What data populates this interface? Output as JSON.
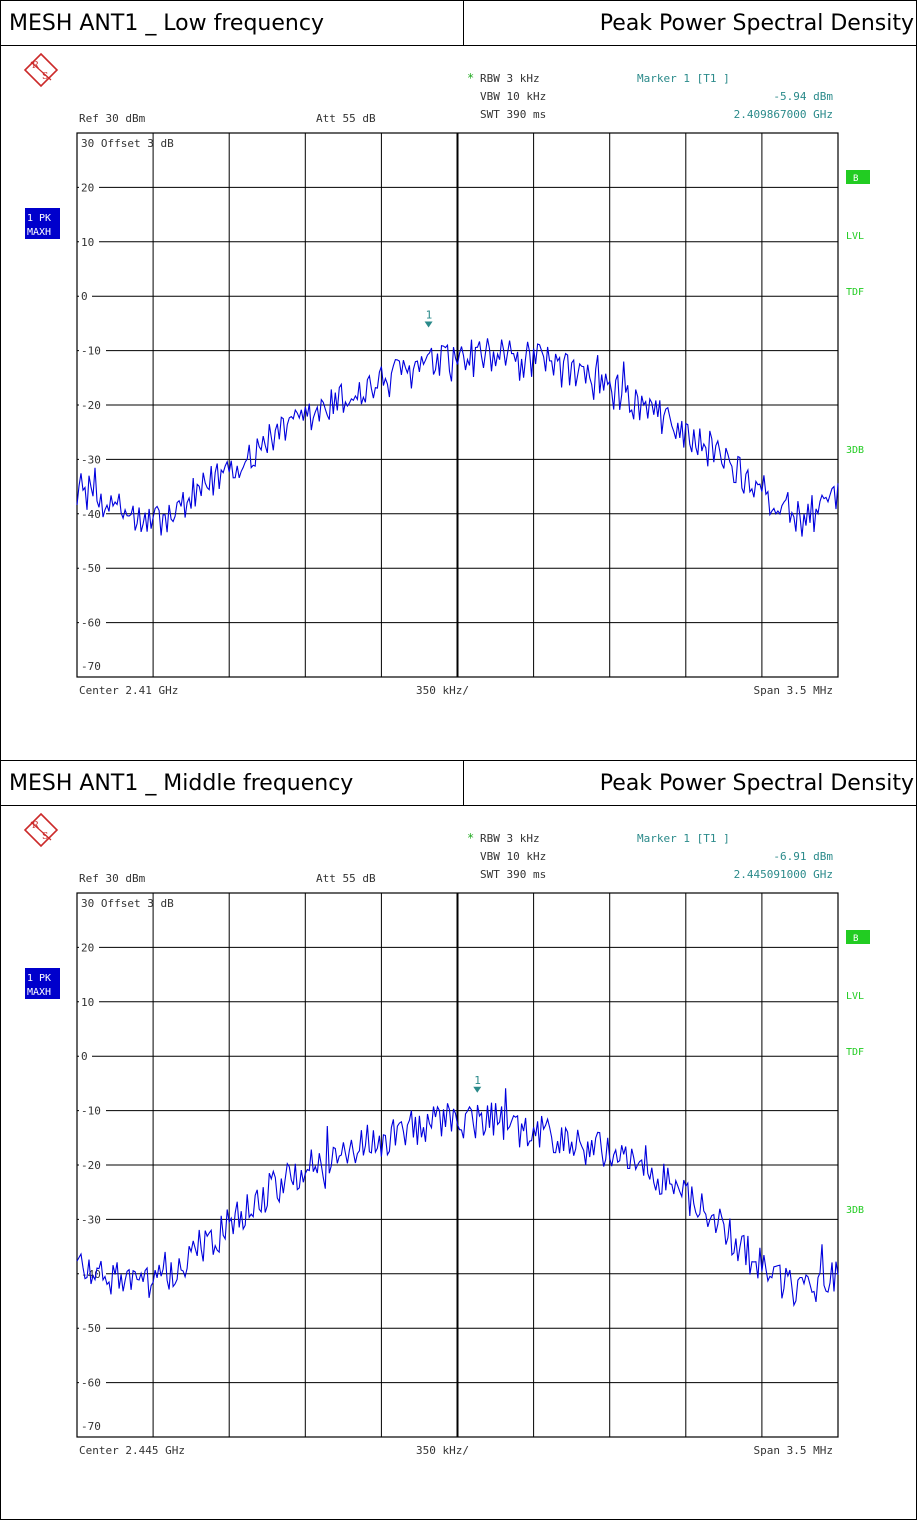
{
  "plots": [
    {
      "title_left": "MESH ANT1 _ Low frequency",
      "title_right": "Peak Power Spectral Density",
      "rbw": "RBW 3 kHz",
      "vbw": "VBW 10 kHz",
      "swt": "SWT 390 ms",
      "ref": "Ref  30 dBm",
      "att": "Att  55 dB",
      "marker_label": "Marker 1 [T1 ]",
      "marker_level": "-5.94 dBm",
      "marker_freq": "2.409867000 GHz",
      "offset": "30 Offset  3 dB",
      "trace_mode_1": "1 PK",
      "trace_mode_2": "MAXH",
      "side_b": "B",
      "side_lvl": "LVL",
      "side_tdf": "TDF",
      "side_3db": "3DB",
      "center": "Center  2.41 GHz",
      "per_div": "350 kHz/",
      "span": "Span  3.5 MHz",
      "marker_num": "1"
    },
    {
      "title_left": "MESH ANT1 _ Middle frequency",
      "title_right": "Peak Power Spectral Density",
      "rbw": "RBW 3 kHz",
      "vbw": "VBW 10 kHz",
      "swt": "SWT 390 ms",
      "ref": "Ref  30 dBm",
      "att": "Att  55 dB",
      "marker_label": "Marker 1 [T1 ]",
      "marker_level": "-6.91 dBm",
      "marker_freq": "2.445091000 GHz",
      "offset": "30 Offset  3 dB",
      "trace_mode_1": "1 PK",
      "trace_mode_2": "MAXH",
      "side_b": "B",
      "side_lvl": "LVL",
      "side_tdf": "TDF",
      "side_3db": "3DB",
      "center": "Center  2.445 GHz",
      "per_div": "350 kHz/",
      "span": "Span  3.5 MHz",
      "marker_num": "1"
    }
  ],
  "colors": {
    "trace": "#0000dd",
    "marker": "#2a8a8a",
    "side_label": "#22cc22",
    "trace_badge": "#0000cc",
    "grid": "#000000",
    "logo": "#cc2a2a"
  },
  "chart_data": [
    {
      "type": "line",
      "title": "MESH ANT1 _ Low frequency",
      "xlabel": "",
      "ylabel": "",
      "x_center_ghz": 2.41,
      "x_span_mhz": 3.5,
      "x_per_div_khz": 350,
      "ylim": [
        -70,
        30
      ],
      "yticks": [
        "30",
        "20",
        "10",
        "0",
        "-10",
        "-20",
        "-30",
        "-40",
        "-50",
        "-60",
        "-70"
      ],
      "grid": true,
      "marker": {
        "x_mhz_offset": -0.133,
        "y": -5.94
      },
      "x_mhz_offset": [
        -1.75,
        -1.575,
        -1.4,
        -1.225,
        -1.05,
        -0.875,
        -0.7,
        -0.525,
        -0.35,
        -0.175,
        0.0,
        0.175,
        0.35,
        0.525,
        0.7,
        0.875,
        1.05,
        1.225,
        1.4,
        1.575,
        1.75
      ],
      "values": [
        -35,
        -39,
        -42,
        -38,
        -31,
        -27,
        -23,
        -19,
        -16,
        -13,
        -12,
        -11,
        -12,
        -14,
        -17,
        -21,
        -25,
        -30,
        -36,
        -41,
        -38
      ]
    },
    {
      "type": "line",
      "title": "MESH ANT1 _ Middle frequency",
      "xlabel": "",
      "ylabel": "",
      "x_center_ghz": 2.445,
      "x_span_mhz": 3.5,
      "x_per_div_khz": 350,
      "ylim": [
        -70,
        30
      ],
      "yticks": [
        "30",
        "20",
        "10",
        "0",
        "-10",
        "-20",
        "-30",
        "-40",
        "-50",
        "-60",
        "-70"
      ],
      "grid": true,
      "marker": {
        "x_mhz_offset": 0.091,
        "y": -6.91
      },
      "x_mhz_offset": [
        -1.75,
        -1.575,
        -1.4,
        -1.225,
        -1.05,
        -0.875,
        -0.7,
        -0.525,
        -0.35,
        -0.175,
        0.0,
        0.175,
        0.35,
        0.525,
        0.7,
        0.875,
        1.05,
        1.225,
        1.4,
        1.575,
        1.75
      ],
      "values": [
        -38,
        -41,
        -42,
        -37,
        -31,
        -25,
        -21,
        -18,
        -15,
        -13,
        -12,
        -12,
        -14,
        -16,
        -18,
        -21,
        -26,
        -32,
        -39,
        -43,
        -40
      ]
    }
  ]
}
